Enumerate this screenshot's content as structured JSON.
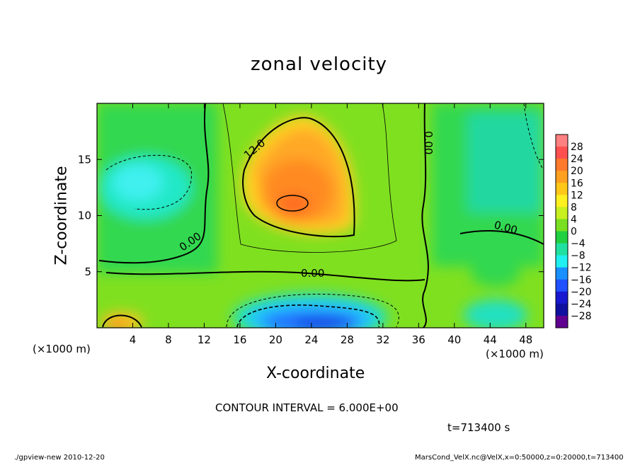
{
  "chart_data": {
    "type": "heatmap",
    "title": "zonal velocity",
    "xlabel": "X-coordinate",
    "ylabel": "Z-coordinate",
    "x_unit": "(×1000 m)",
    "x_unit_right": "(×1000 m)",
    "xlim": [
      0,
      50
    ],
    "ylim": [
      0,
      20
    ],
    "x_ticks": [
      "4",
      "8",
      "12",
      "16",
      "20",
      "24",
      "28",
      "32",
      "36",
      "40",
      "44",
      "48"
    ],
    "y_ticks": [
      "5",
      "10",
      "15"
    ],
    "contour_labels": [
      "12.0",
      "0.00",
      "0.00",
      "0.00",
      "0.00"
    ],
    "colorbar": {
      "labels": [
        "28",
        "24",
        "20",
        "16",
        "12",
        "8",
        "4",
        "0",
        "−4",
        "−8",
        "−12",
        "−16",
        "−20",
        "−24",
        "−28"
      ],
      "colors": [
        "#ff8080",
        "#ff5050",
        "#ff7a2a",
        "#ffa020",
        "#ffc818",
        "#fff020",
        "#c8f020",
        "#78e020",
        "#20d040",
        "#20e0a0",
        "#20f0f0",
        "#1890ff",
        "#2050ff",
        "#1818d0",
        "#1010a0",
        "#600090"
      ]
    },
    "contour_interval_text": "CONTOUR INTERVAL = 6.000E+00",
    "time_text": "t=713400 s"
  },
  "footer": {
    "left": "./gpview-new   2010-12-20",
    "right": "MarsCond_VelX.nc@VelX,x=0:50000,z=0:20000,t=713400"
  }
}
